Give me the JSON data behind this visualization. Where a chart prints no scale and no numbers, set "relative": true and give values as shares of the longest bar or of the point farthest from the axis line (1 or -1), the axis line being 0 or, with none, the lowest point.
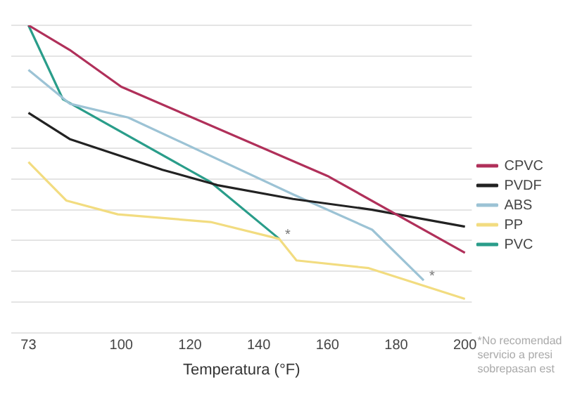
{
  "chart_data": {
    "type": "line",
    "relative": true,
    "xlabel": "Temperatura (°F)",
    "xlim": [
      68,
      202
    ],
    "xticks": [
      73,
      100,
      120,
      140,
      160,
      180,
      200
    ],
    "grid": "y",
    "legend": "right",
    "marker": "none",
    "line_style": "solid",
    "series": [
      {
        "name": "CPVC",
        "color": "#b0305a",
        "x": [
          73,
          85,
          100,
          160,
          200
        ],
        "values": [
          1,
          0.92,
          0.8,
          0.51,
          0.26
        ]
      },
      {
        "name": "PVDF",
        "color": "#222222",
        "x": [
          73,
          85,
          112,
          128,
          150,
          173,
          200
        ],
        "values": [
          0.715,
          0.63,
          0.53,
          0.48,
          0.435,
          0.4,
          0.345
        ]
      },
      {
        "name": "ABS",
        "color": "#9cc3d5",
        "x": [
          73,
          85,
          102,
          150,
          173,
          188
        ],
        "values": [
          0.855,
          0.745,
          0.7,
          0.45,
          0.335,
          0.17
        ]
      },
      {
        "name": "PP",
        "color": "#f2dc80",
        "x": [
          73,
          84,
          99,
          126,
          146,
          151,
          172,
          200
        ],
        "values": [
          0.555,
          0.43,
          0.385,
          0.36,
          0.305,
          0.235,
          0.21,
          0.11
        ]
      },
      {
        "name": "PVC",
        "color": "#2a9d8a",
        "x": [
          73,
          83,
          126,
          146
        ],
        "values": [
          1,
          0.76,
          0.49,
          0.305
        ]
      }
    ],
    "annotations": [
      {
        "text": "*",
        "x": 146,
        "y": 0.305
      },
      {
        "text": "*",
        "x": 188,
        "y": 0.17
      },
      "*No recomendad",
      "servicio a presi",
      "sobrepasan est"
    ]
  }
}
